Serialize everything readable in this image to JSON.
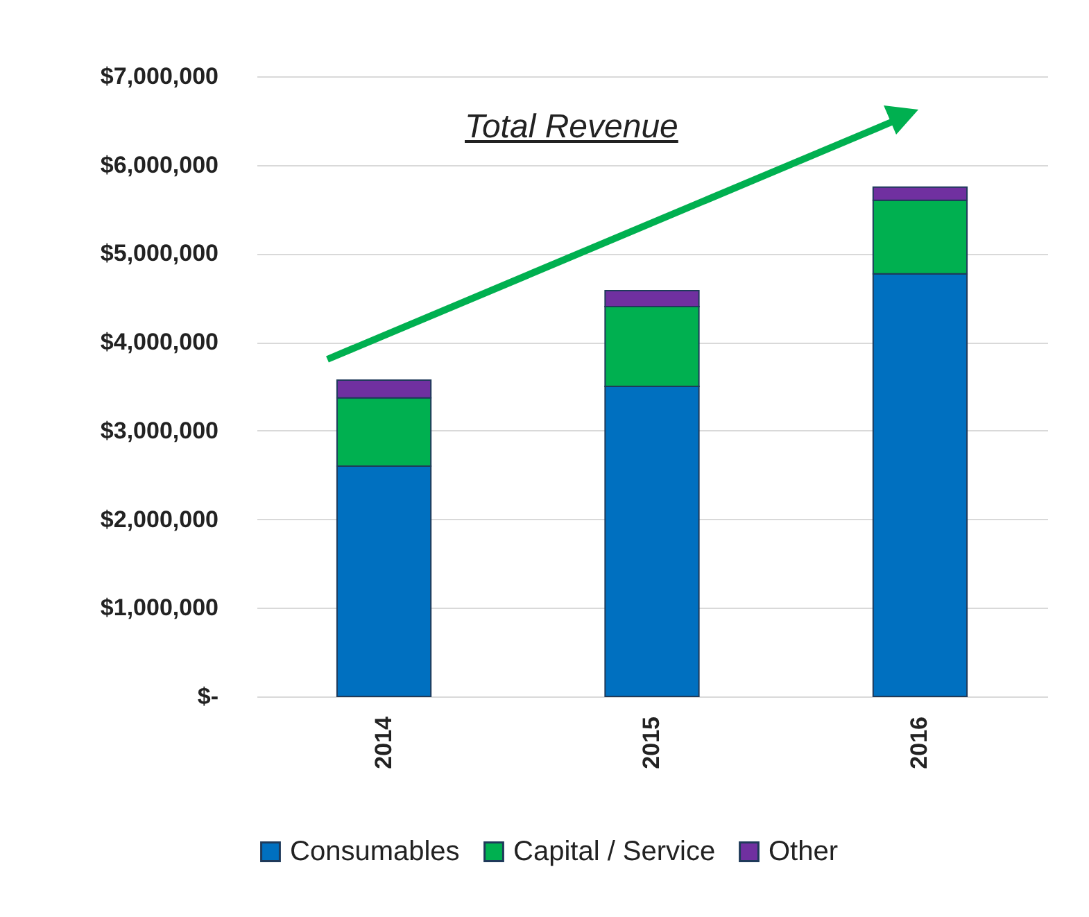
{
  "chart_data": {
    "type": "bar",
    "stacked": true,
    "categories": [
      "2014",
      "2015",
      "2016"
    ],
    "series": [
      {
        "name": "Consumables",
        "color": "#0070c0",
        "values": [
          2600000,
          3500000,
          4770000
        ]
      },
      {
        "name": "Capital / Service",
        "color": "#00b050",
        "values": [
          770000,
          900000,
          830000
        ]
      },
      {
        "name": "Other",
        "color": "#7030a0",
        "values": [
          200000,
          180000,
          150000
        ]
      }
    ],
    "ylim": [
      0,
      7000000
    ],
    "yticks": [
      {
        "value": 0,
        "label": "$-"
      },
      {
        "value": 1000000,
        "label": "$1,000,000"
      },
      {
        "value": 2000000,
        "label": "$2,000,000"
      },
      {
        "value": 3000000,
        "label": "$3,000,000"
      },
      {
        "value": 4000000,
        "label": "$4,000,000"
      },
      {
        "value": 5000000,
        "label": "$5,000,000"
      },
      {
        "value": 6000000,
        "label": "$6,000,000"
      },
      {
        "value": 7000000,
        "label": "$7,000,000"
      }
    ],
    "grid": "y",
    "legend": "bottom",
    "annotations": [
      "Total Revenue"
    ]
  }
}
